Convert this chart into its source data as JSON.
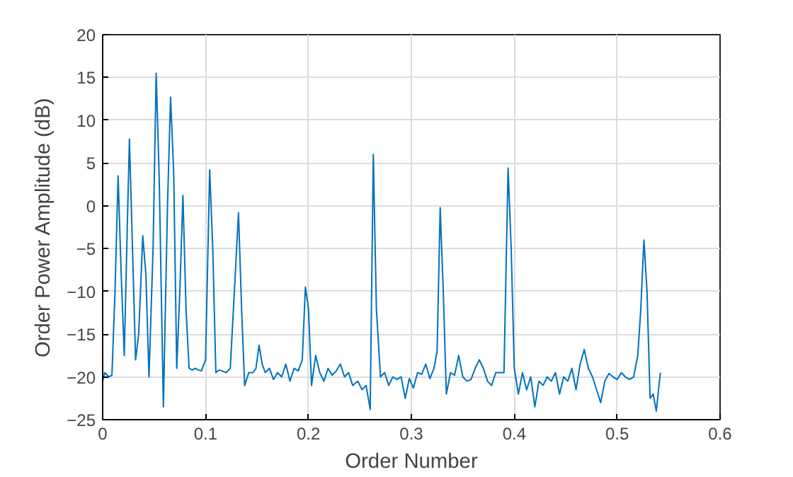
{
  "chart_data": {
    "type": "line",
    "xlabel": "Order Number",
    "ylabel": "Order Power Amplitude (dB)",
    "xlim": [
      0,
      0.6
    ],
    "ylim": [
      -25,
      20
    ],
    "xticks": [
      0,
      0.1,
      0.2,
      0.3,
      0.4,
      0.5,
      0.6
    ],
    "yticks": [
      -25,
      -20,
      -15,
      -10,
      -5,
      0,
      5,
      10,
      15,
      20
    ],
    "grid": true,
    "marker": "none",
    "line_style": "solid",
    "series": [
      {
        "color": "#0072bd",
        "x": [
          0,
          0.002,
          0.006,
          0.009,
          0.012,
          0.015,
          0.018,
          0.021,
          0.024,
          0.026,
          0.029,
          0.032,
          0.035,
          0.039,
          0.042,
          0.045,
          0.049,
          0.052,
          0.055,
          0.059,
          0.063,
          0.066,
          0.069,
          0.072,
          0.075,
          0.078,
          0.081,
          0.084,
          0.087,
          0.09,
          0.093,
          0.096,
          0.1,
          0.104,
          0.107,
          0.11,
          0.113,
          0.116,
          0.12,
          0.124,
          0.128,
          0.132,
          0.135,
          0.138,
          0.142,
          0.146,
          0.149,
          0.152,
          0.155,
          0.158,
          0.162,
          0.166,
          0.17,
          0.174,
          0.178,
          0.182,
          0.186,
          0.19,
          0.194,
          0.197,
          0.2,
          0.203,
          0.207,
          0.211,
          0.215,
          0.219,
          0.223,
          0.227,
          0.231,
          0.235,
          0.239,
          0.243,
          0.248,
          0.252,
          0.256,
          0.26,
          0.263,
          0.266,
          0.27,
          0.274,
          0.278,
          0.282,
          0.286,
          0.29,
          0.294,
          0.298,
          0.302,
          0.306,
          0.31,
          0.314,
          0.318,
          0.322,
          0.325,
          0.328,
          0.331,
          0.334,
          0.338,
          0.342,
          0.346,
          0.35,
          0.354,
          0.358,
          0.362,
          0.366,
          0.37,
          0.374,
          0.378,
          0.382,
          0.386,
          0.39,
          0.394,
          0.397,
          0.4,
          0.404,
          0.408,
          0.412,
          0.416,
          0.42,
          0.424,
          0.428,
          0.432,
          0.436,
          0.44,
          0.444,
          0.448,
          0.452,
          0.456,
          0.46,
          0.464,
          0.468,
          0.472,
          0.476,
          0.48,
          0.484,
          0.488,
          0.492,
          0.496,
          0.5,
          0.504,
          0.508,
          0.512,
          0.516,
          0.52,
          0.523,
          0.526,
          0.529,
          0.532,
          0.535,
          0.538,
          0.542
        ],
        "values": [
          -20.5,
          -19.5,
          -20,
          -19.8,
          -10,
          3.5,
          -8,
          -17.5,
          -2,
          7.8,
          -5,
          -18,
          -15,
          -3.5,
          -8,
          -20,
          -5,
          15.5,
          3,
          -23.5,
          0,
          12.7,
          4,
          -19,
          -10,
          1.2,
          -12,
          -19,
          -19.2,
          -19,
          -19.2,
          -19.3,
          -18,
          4.2,
          -5,
          -19.5,
          -19.2,
          -19.3,
          -19.5,
          -19,
          -10,
          -0.8,
          -12,
          -21,
          -19.5,
          -19.5,
          -19,
          -16.3,
          -18.5,
          -19.5,
          -19,
          -20.3,
          -19.5,
          -20,
          -18.5,
          -20.5,
          -19,
          -19.3,
          -18,
          -9.5,
          -12,
          -21,
          -17.5,
          -19.5,
          -20.5,
          -19,
          -19.8,
          -19.3,
          -18.5,
          -20,
          -19.5,
          -21,
          -20.5,
          -21.5,
          -21,
          -23.8,
          6,
          -12,
          -20,
          -19.5,
          -21,
          -20,
          -20.3,
          -20,
          -22.5,
          -20.2,
          -21.3,
          -19.5,
          -19.7,
          -18.5,
          -20.2,
          -19,
          -17,
          -0.2,
          -10,
          -22,
          -19.5,
          -19.8,
          -17.5,
          -20,
          -20.5,
          -20.3,
          -19,
          -18,
          -19,
          -20.5,
          -21,
          -19.5,
          -19.5,
          -19.5,
          4.4,
          -5,
          -19,
          -22,
          -19.5,
          -21.5,
          -20,
          -23.5,
          -20.5,
          -21,
          -20,
          -20.5,
          -19.5,
          -22,
          -20,
          -20.5,
          -19,
          -21.5,
          -18.5,
          -16.8,
          -19,
          -20,
          -21.5,
          -23,
          -20.5,
          -19.6,
          -20,
          -20.3,
          -19.5,
          -20,
          -20.3,
          -20,
          -17.5,
          -12,
          -4,
          -10,
          -22.5,
          -22,
          -24,
          -19.5
        ]
      }
    ]
  }
}
